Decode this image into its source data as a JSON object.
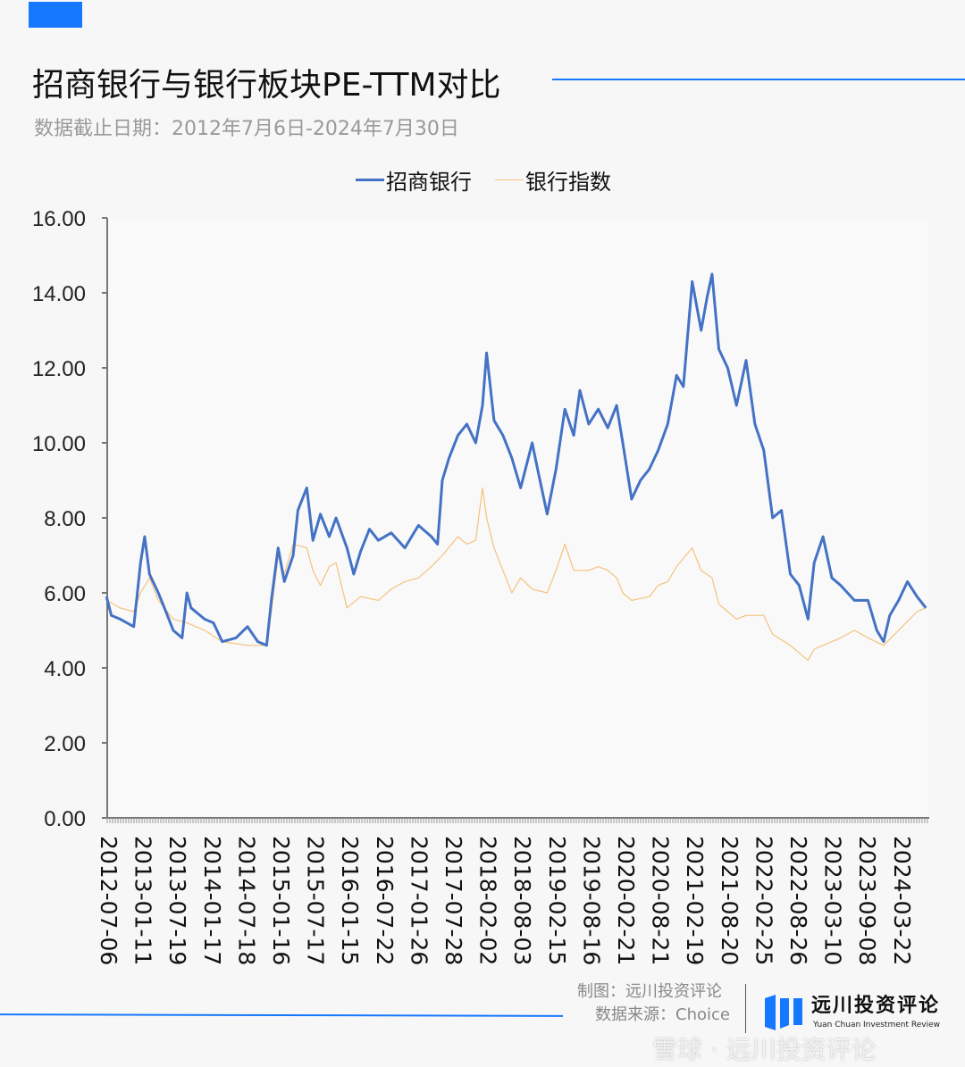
{
  "header": {
    "title": "招商银行与银行板块PE-TTM对比",
    "subtitle": "数据截止日期：2012年7月6日-2024年7月30日"
  },
  "colors": {
    "accent": "#1677ff",
    "series_cmb": "#4472c4",
    "series_bank": "#f5c27a"
  },
  "footer": {
    "credit": "制图：远川投资评论",
    "source": "数据来源：Choice",
    "logo_name": "远川投资评论",
    "logo_en": "Yuan Chuan Investment Review",
    "watermark": "雪球 · 远川投资评论"
  },
  "chart_data": {
    "type": "line",
    "title": "招商银行与银行板块PE-TTM对比",
    "ylim": [
      0,
      16
    ],
    "yticks": [
      "0.00",
      "2.00",
      "4.00",
      "6.00",
      "8.00",
      "10.00",
      "12.00",
      "14.00",
      "16.00"
    ],
    "xlim": [
      2012.51,
      2024.58
    ],
    "xticks": [
      "2012-07-06",
      "2013-01-11",
      "2013-07-19",
      "2014-01-17",
      "2014-07-18",
      "2015-01-16",
      "2015-07-17",
      "2016-01-15",
      "2016-07-22",
      "2017-01-26",
      "2017-07-28",
      "2018-02-02",
      "2018-08-03",
      "2019-02-15",
      "2019-08-16",
      "2020-02-21",
      "2020-08-21",
      "2021-02-19",
      "2021-08-20",
      "2022-02-25",
      "2022-08-26",
      "2023-03-10",
      "2023-09-08",
      "2024-03-22"
    ],
    "legend": {
      "position": "top",
      "entries": [
        "招商银行",
        "银行指数"
      ]
    },
    "series": [
      {
        "name": "招商银行",
        "x": [
          2012.5,
          2012.57,
          2012.7,
          2012.9,
          2013.0,
          2013.06,
          2013.13,
          2013.26,
          2013.35,
          2013.48,
          2013.61,
          2013.68,
          2013.74,
          2013.94,
          2014.07,
          2014.2,
          2014.4,
          2014.57,
          2014.72,
          2014.85,
          2014.92,
          2015.02,
          2015.11,
          2015.24,
          2015.31,
          2015.44,
          2015.53,
          2015.64,
          2015.77,
          2015.87,
          2016.03,
          2016.13,
          2016.23,
          2016.36,
          2016.49,
          2016.68,
          2016.88,
          2017.08,
          2017.27,
          2017.36,
          2017.43,
          2017.53,
          2017.66,
          2017.79,
          2017.92,
          2018.02,
          2018.08,
          2018.19,
          2018.32,
          2018.45,
          2018.58,
          2018.75,
          2018.84,
          2018.97,
          2019.1,
          2019.23,
          2019.36,
          2019.45,
          2019.58,
          2019.72,
          2019.86,
          2019.99,
          2020.08,
          2020.21,
          2020.34,
          2020.47,
          2020.6,
          2020.74,
          2020.87,
          2020.97,
          2021.1,
          2021.23,
          2021.32,
          2021.39,
          2021.49,
          2021.62,
          2021.75,
          2021.89,
          2022.02,
          2022.15,
          2022.28,
          2022.41,
          2022.54,
          2022.67,
          2022.8,
          2022.89,
          2023.02,
          2023.15,
          2023.28,
          2023.48,
          2023.68,
          2023.81,
          2023.91,
          2024.0,
          2024.13,
          2024.26,
          2024.4,
          2024.53
        ],
        "values": [
          5.9,
          5.4,
          5.3,
          5.1,
          6.8,
          7.5,
          6.5,
          6.0,
          5.6,
          5.0,
          4.8,
          6.0,
          5.6,
          5.3,
          5.2,
          4.7,
          4.8,
          5.1,
          4.7,
          4.6,
          5.8,
          7.2,
          6.3,
          7.0,
          8.2,
          8.8,
          7.4,
          8.1,
          7.5,
          8.0,
          7.2,
          6.5,
          7.1,
          7.7,
          7.4,
          7.6,
          7.2,
          7.8,
          7.5,
          7.3,
          9.0,
          9.6,
          10.2,
          10.5,
          10.0,
          11.0,
          12.4,
          10.6,
          10.2,
          9.6,
          8.8,
          10.0,
          9.2,
          8.1,
          9.3,
          10.9,
          10.2,
          11.4,
          10.5,
          10.9,
          10.4,
          11.0,
          10.0,
          8.5,
          9.0,
          9.3,
          9.8,
          10.5,
          11.8,
          11.5,
          14.3,
          13.0,
          13.9,
          14.5,
          12.5,
          12.0,
          11.0,
          12.2,
          10.5,
          9.8,
          8.0,
          8.2,
          6.5,
          6.2,
          5.3,
          6.8,
          7.5,
          6.4,
          6.2,
          5.8,
          5.8,
          5.0,
          4.7,
          5.4,
          5.8,
          6.3,
          5.9,
          5.6
        ]
      },
      {
        "name": "银行指数",
        "x": [
          2012.5,
          2012.7,
          2012.9,
          2013.0,
          2013.13,
          2013.26,
          2013.48,
          2013.68,
          2013.94,
          2014.2,
          2014.57,
          2014.85,
          2014.92,
          2015.02,
          2015.11,
          2015.24,
          2015.44,
          2015.53,
          2015.64,
          2015.77,
          2015.87,
          2016.03,
          2016.23,
          2016.49,
          2016.68,
          2016.88,
          2017.08,
          2017.27,
          2017.43,
          2017.66,
          2017.79,
          2017.92,
          2018.02,
          2018.08,
          2018.19,
          2018.32,
          2018.45,
          2018.58,
          2018.75,
          2018.97,
          2019.1,
          2019.23,
          2019.36,
          2019.58,
          2019.72,
          2019.86,
          2019.99,
          2020.08,
          2020.21,
          2020.47,
          2020.6,
          2020.74,
          2020.87,
          2021.1,
          2021.23,
          2021.39,
          2021.49,
          2021.62,
          2021.75,
          2021.89,
          2022.15,
          2022.28,
          2022.54,
          2022.8,
          2022.89,
          2023.02,
          2023.28,
          2023.48,
          2023.68,
          2023.91,
          2024.13,
          2024.4,
          2024.53
        ],
        "values": [
          5.8,
          5.6,
          5.5,
          6.0,
          6.4,
          5.8,
          5.3,
          5.2,
          5.0,
          4.7,
          4.6,
          4.6,
          5.5,
          7.0,
          6.5,
          7.3,
          7.2,
          6.6,
          6.2,
          6.7,
          6.8,
          5.6,
          5.9,
          5.8,
          6.1,
          6.3,
          6.4,
          6.7,
          7.0,
          7.5,
          7.3,
          7.4,
          8.8,
          8.0,
          7.2,
          6.6,
          6.0,
          6.4,
          6.1,
          6.0,
          6.6,
          7.3,
          6.6,
          6.6,
          6.7,
          6.6,
          6.4,
          6.0,
          5.8,
          5.9,
          6.2,
          6.3,
          6.7,
          7.2,
          6.6,
          6.4,
          5.7,
          5.5,
          5.3,
          5.4,
          5.4,
          4.9,
          4.6,
          4.2,
          4.5,
          4.6,
          4.8,
          5.0,
          4.8,
          4.6,
          5.0,
          5.5,
          5.6
        ]
      }
    ]
  }
}
